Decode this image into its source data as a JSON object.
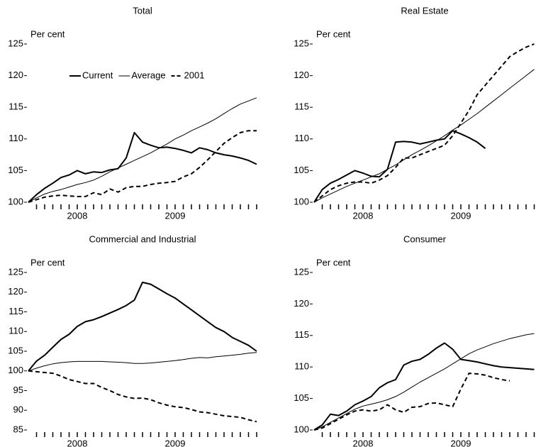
{
  "chart_data": [
    {
      "type": "line",
      "title": "Total",
      "ylabel": "Per cent",
      "legend": "top-left",
      "categories": [
        null,
        null,
        null,
        null,
        null,
        null,
        "2008",
        null,
        null,
        null,
        null,
        null,
        null,
        null,
        null,
        null,
        null,
        null,
        "2009",
        null,
        null,
        null,
        null,
        null,
        null,
        null,
        null,
        null,
        null
      ],
      "ylim": [
        100,
        125
      ],
      "yticks": [
        100,
        105,
        110,
        115,
        120,
        125
      ],
      "series": [
        {
          "name": "Current",
          "color": "#000000",
          "values": [
            100,
            101.2,
            102.2,
            103,
            103.9,
            104.3,
            105,
            104.5,
            104.8,
            104.7,
            105.1,
            105.3,
            107,
            111,
            109.5,
            109,
            108.6,
            108.7,
            108.5,
            108.2,
            107.8,
            108.6,
            108.3,
            107.8,
            107.5,
            107.3,
            107,
            106.6,
            106
          ]
        },
        {
          "name": "Average",
          "color": "#000000",
          "values": [
            100,
            100.7,
            101.3,
            101.7,
            102,
            102.4,
            102.8,
            103.1,
            103.5,
            104.1,
            104.8,
            105.4,
            106,
            106.6,
            107.2,
            107.8,
            108.5,
            109.2,
            110,
            110.6,
            111.3,
            111.9,
            112.5,
            113.2,
            114,
            114.8,
            115.5,
            116,
            116.5
          ]
        },
        {
          "name": "2001",
          "color": "#000000",
          "dash": true,
          "values": [
            100,
            100.4,
            100.8,
            101,
            101.1,
            101,
            100.9,
            100.9,
            101.5,
            101.2,
            102.1,
            101.6,
            102.3,
            102.5,
            102.5,
            102.8,
            103,
            103.1,
            103.3,
            104,
            104.5,
            105.5,
            106.7,
            108,
            109.3,
            110.2,
            111,
            111.3,
            111.3
          ]
        }
      ]
    },
    {
      "type": "line",
      "title": "Real Estate",
      "ylabel": "Per cent",
      "categories": [
        null,
        null,
        null,
        null,
        null,
        null,
        "2008",
        null,
        null,
        null,
        null,
        null,
        null,
        null,
        null,
        null,
        null,
        null,
        "2009",
        null,
        null,
        null,
        null,
        null,
        null,
        null,
        null,
        null
      ],
      "ylim": [
        100,
        125
      ],
      "yticks": [
        100,
        105,
        110,
        115,
        120,
        125
      ],
      "series": [
        {
          "name": "Current",
          "color": "#000000",
          "values": [
            100,
            102,
            103,
            103.6,
            104.3,
            105,
            104.6,
            104.1,
            104,
            105.2,
            109.5,
            109.6,
            109.5,
            109.2,
            109.5,
            109.8,
            110,
            111.3,
            110.8,
            110.2,
            109.5,
            108.5,
            null,
            null,
            null,
            null,
            null,
            null
          ]
        },
        {
          "name": "Average",
          "color": "#000000",
          "values": [
            100,
            100.7,
            101.3,
            101.9,
            102.5,
            103,
            103.5,
            104,
            104.5,
            105.2,
            105.9,
            106.7,
            107.5,
            108.2,
            108.9,
            109.7,
            110.5,
            111.4,
            112.2,
            113.1,
            114,
            115,
            116,
            117,
            118,
            119,
            120,
            121
          ]
        },
        {
          "name": "2001",
          "color": "#000000",
          "dash": true,
          "values": [
            100,
            101,
            102,
            102.6,
            103,
            103.2,
            103.2,
            103,
            103.5,
            104.2,
            105.5,
            107,
            107,
            107.5,
            108,
            108.5,
            109,
            110.5,
            112.5,
            114.5,
            117,
            118.5,
            120,
            121.5,
            123,
            123.8,
            124.5,
            125
          ]
        }
      ]
    },
    {
      "type": "line",
      "title": "Commercial and Industrial",
      "ylabel": "Per cent",
      "categories": [
        null,
        null,
        null,
        null,
        null,
        null,
        "2008",
        null,
        null,
        null,
        null,
        null,
        null,
        null,
        null,
        null,
        null,
        null,
        "2009",
        null,
        null,
        null,
        null,
        null,
        null,
        null,
        null,
        null,
        null
      ],
      "ylim": [
        85,
        125
      ],
      "yticks": [
        85,
        90,
        95,
        100,
        105,
        110,
        115,
        120,
        125
      ],
      "series": [
        {
          "name": "Current",
          "color": "#000000",
          "values": [
            100,
            102.5,
            104,
            106,
            108,
            109.3,
            111.3,
            112.5,
            113,
            113.8,
            114.7,
            115.6,
            116.6,
            118,
            122.5,
            122,
            120.8,
            119.6,
            118.5,
            117,
            115.5,
            114,
            112.5,
            111,
            110,
            108.5,
            107.5,
            106.5,
            105
          ]
        },
        {
          "name": "Average",
          "color": "#000000",
          "values": [
            100,
            100.7,
            101.3,
            101.8,
            102.1,
            102.3,
            102.4,
            102.4,
            102.4,
            102.4,
            102.3,
            102.2,
            102.1,
            101.9,
            101.9,
            102,
            102.2,
            102.4,
            102.6,
            102.9,
            103.2,
            103.4,
            103.3,
            103.6,
            103.8,
            104,
            104.2,
            104.5,
            104.7
          ]
        },
        {
          "name": "2001",
          "color": "#000000",
          "dash": true,
          "values": [
            100,
            99.8,
            99.6,
            99.4,
            98.7,
            97.8,
            97.3,
            96.8,
            96.8,
            95.8,
            95,
            94,
            93.4,
            93,
            93.1,
            92.7,
            91.9,
            91.3,
            90.9,
            90.7,
            90.2,
            89.6,
            89.4,
            89,
            88.6,
            88.4,
            88.2,
            87.6,
            87.1
          ]
        }
      ]
    },
    {
      "type": "line",
      "title": "Consumer",
      "ylabel": "Per cent",
      "categories": [
        null,
        null,
        null,
        null,
        null,
        null,
        "2008",
        null,
        null,
        null,
        null,
        null,
        null,
        null,
        null,
        null,
        null,
        null,
        "2009",
        null,
        null,
        null,
        null,
        null,
        null,
        null,
        null,
        null
      ],
      "ylim": [
        100,
        125
      ],
      "yticks": [
        100,
        105,
        110,
        115,
        120,
        125
      ],
      "series": [
        {
          "name": "Current",
          "color": "#000000",
          "values": [
            100,
            100.8,
            102.5,
            102.3,
            103,
            104,
            104.6,
            105.3,
            106.7,
            107.5,
            108,
            110.3,
            110.9,
            111.2,
            112,
            113,
            113.8,
            112.8,
            111.2,
            111,
            110.8,
            110.5,
            110.2,
            110,
            109.9,
            109.8,
            109.7,
            109.6
          ]
        },
        {
          "name": "Average",
          "color": "#000000",
          "values": [
            100,
            100.5,
            101.2,
            101.9,
            102.6,
            103.3,
            103.8,
            104.1,
            104.4,
            104.8,
            105.3,
            106,
            106.8,
            107.6,
            108.3,
            109,
            109.7,
            110.5,
            111.3,
            112.1,
            112.7,
            113.2,
            113.7,
            114.1,
            114.5,
            114.8,
            115.1,
            115.3
          ]
        },
        {
          "name": "2001",
          "color": "#000000",
          "dash": true,
          "values": [
            100,
            100.3,
            101,
            101.7,
            102.4,
            103,
            103.2,
            103,
            103.2,
            104,
            103.2,
            102.8,
            103.6,
            103.7,
            104.2,
            104.3,
            104,
            103.7,
            106.5,
            109,
            108.9,
            108.7,
            108.3,
            108,
            107.8,
            null,
            null,
            null
          ]
        }
      ]
    }
  ]
}
